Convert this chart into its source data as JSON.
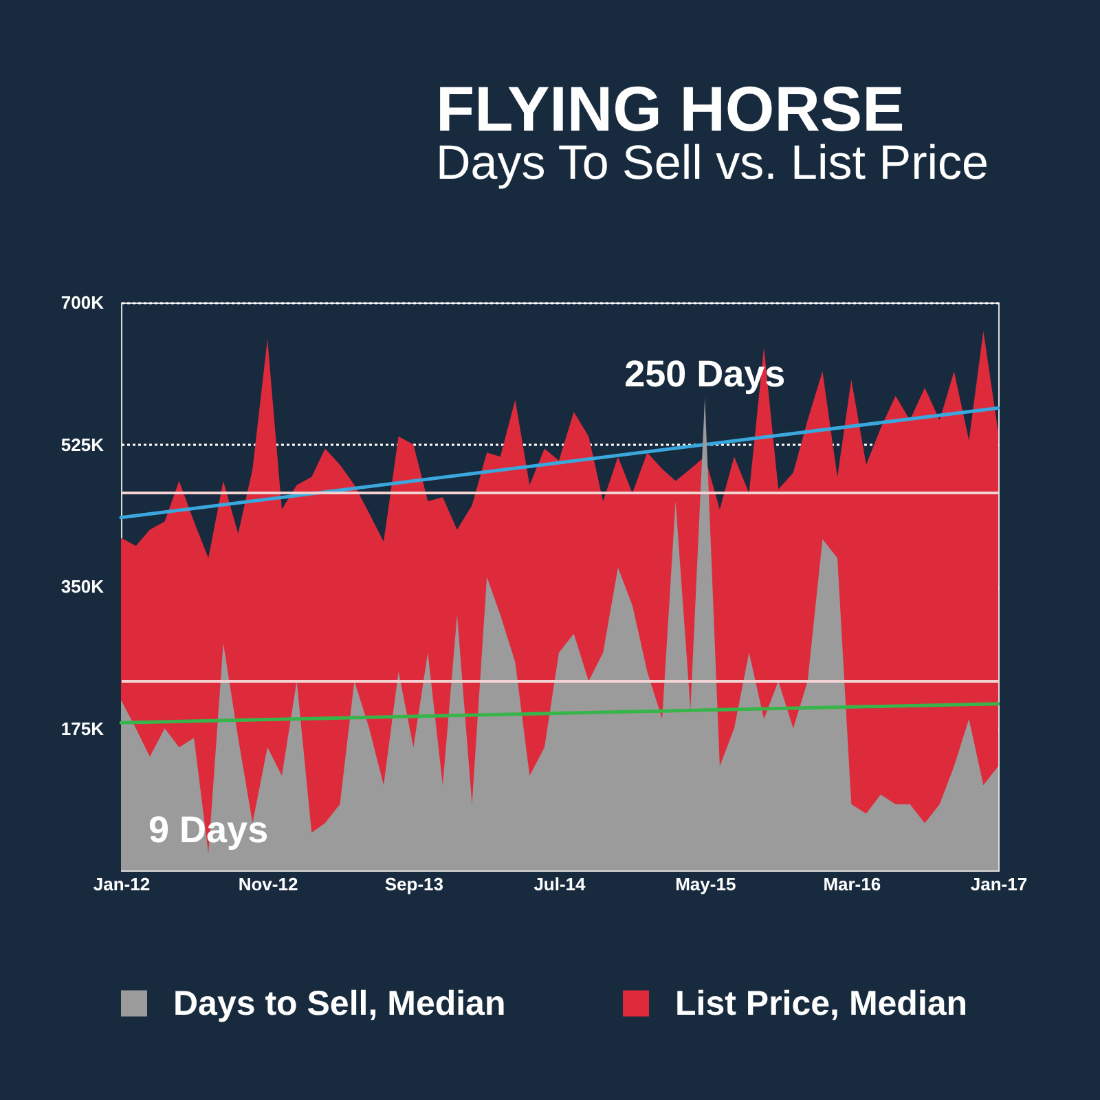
{
  "chart_data": {
    "type": "area",
    "title": "FLYING HORSE",
    "subtitle": "Days To Sell vs. List Price",
    "x": [
      "2012-01",
      "2012-02",
      "2012-03",
      "2012-04",
      "2012-05",
      "2012-06",
      "2012-07",
      "2012-08",
      "2012-09",
      "2012-10",
      "2012-11",
      "2012-12",
      "2013-01",
      "2013-02",
      "2013-03",
      "2013-04",
      "2013-05",
      "2013-06",
      "2013-07",
      "2013-08",
      "2013-09",
      "2013-10",
      "2013-11",
      "2013-12",
      "2014-01",
      "2014-02",
      "2014-03",
      "2014-04",
      "2014-05",
      "2014-06",
      "2014-07",
      "2014-08",
      "2014-09",
      "2014-10",
      "2014-11",
      "2014-12",
      "2015-01",
      "2015-02",
      "2015-03",
      "2015-04",
      "2015-05",
      "2015-06",
      "2015-07",
      "2015-08",
      "2015-09",
      "2015-10",
      "2015-11",
      "2015-12",
      "2016-01",
      "2016-02",
      "2016-03",
      "2016-04",
      "2016-05",
      "2016-06",
      "2016-07",
      "2016-08",
      "2016-09",
      "2016-10",
      "2016-11",
      "2016-12",
      "2017-01"
    ],
    "xlim": [
      "2012-01",
      "2017-01"
    ],
    "xticks": [
      {
        "value": "2012-01",
        "label": "Jan-12"
      },
      {
        "value": "2012-11",
        "label": "Nov-12"
      },
      {
        "value": "2013-09",
        "label": "Sep-13"
      },
      {
        "value": "2014-07",
        "label": "Jul-14"
      },
      {
        "value": "2015-05",
        "label": "May-15"
      },
      {
        "value": "2016-03",
        "label": "Mar-16"
      },
      {
        "value": "2017-01",
        "label": "Jan-17"
      }
    ],
    "ylim": [
      0,
      700000
    ],
    "yticks": [
      {
        "value": 175000,
        "label": "175K"
      },
      {
        "value": 350000,
        "label": "350K"
      },
      {
        "value": 525000,
        "label": "525K"
      },
      {
        "value": 700000,
        "label": "700K"
      }
    ],
    "y2lim": [
      0,
      300
    ],
    "y2ticks": [
      {
        "value": 100,
        "label": null
      },
      {
        "value": 200,
        "label": null
      }
    ],
    "grid": "y",
    "legend": "bottom",
    "series": [
      {
        "name": "Days to Sell, Median",
        "color": "#9b9b9b",
        "axis": "y2",
        "values": [
          90,
          75,
          60,
          75,
          65,
          70,
          9,
          120,
          70,
          25,
          65,
          50,
          100,
          20,
          25,
          35,
          100,
          75,
          45,
          105,
          65,
          115,
          45,
          135,
          35,
          155,
          135,
          110,
          50,
          65,
          115,
          125,
          100,
          115,
          160,
          140,
          105,
          80,
          195,
          85,
          250,
          55,
          75,
          115,
          80,
          100,
          75,
          100,
          175,
          165,
          35,
          30,
          40,
          35,
          35,
          25,
          35,
          55,
          80,
          45,
          55
        ],
        "value_labels": [
          null,
          null,
          null,
          null,
          null,
          null,
          "9 Days",
          null,
          null,
          null,
          null,
          null,
          null,
          null,
          null,
          null,
          null,
          null,
          null,
          null,
          null,
          null,
          null,
          null,
          null,
          null,
          null,
          null,
          null,
          null,
          null,
          null,
          null,
          null,
          null,
          null,
          null,
          null,
          null,
          null,
          "250 Days",
          null,
          null,
          null,
          null,
          null,
          null,
          null,
          null,
          null,
          null,
          null,
          null,
          null,
          null,
          null,
          null,
          null,
          null,
          null,
          null
        ]
      },
      {
        "name": "List Price, Median",
        "color": "#dd2b3c",
        "values": [
          410000,
          400000,
          420000,
          430000,
          480000,
          430000,
          385000,
          480000,
          415000,
          495000,
          655000,
          445000,
          475000,
          485000,
          520000,
          500000,
          475000,
          440000,
          405000,
          535000,
          525000,
          455000,
          460000,
          420000,
          450000,
          515000,
          510000,
          580000,
          475000,
          520000,
          505000,
          565000,
          535000,
          455000,
          510000,
          465000,
          515000,
          495000,
          480000,
          495000,
          510000,
          445000,
          510000,
          465000,
          645000,
          470000,
          490000,
          555000,
          615000,
          485000,
          605000,
          500000,
          545000,
          585000,
          555000,
          595000,
          555000,
          615000,
          530000,
          665000,
          540000
        ]
      },
      {
        "type": "line",
        "color": "#3aa8dc",
        "x": [
          "2012-01",
          "2017-01"
        ],
        "values": [
          435000,
          570000
        ]
      },
      {
        "type": "line",
        "color": "#38b54a",
        "axis": "y2",
        "x": [
          "2012-01",
          "2017-01"
        ],
        "values": [
          78,
          88
        ]
      }
    ]
  }
}
